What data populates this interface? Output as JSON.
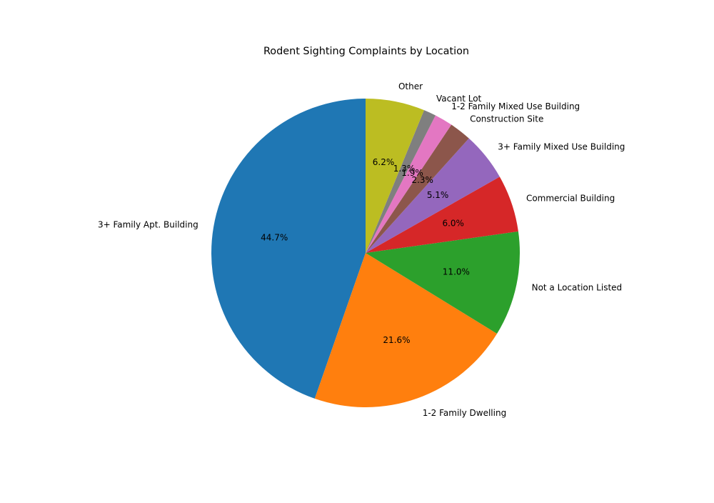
{
  "chart_data": {
    "type": "pie",
    "title": "Rodent Sighting Complaints by Location",
    "start_angle_deg": 90,
    "direction": "counterclockwise",
    "slices": [
      {
        "label": "3+ Family Apt. Building",
        "value": 44.7,
        "pct_label": "44.7%",
        "color": "#1f77b4"
      },
      {
        "label": "1-2 Family Dwelling",
        "value": 21.6,
        "pct_label": "21.6%",
        "color": "#ff7f0e"
      },
      {
        "label": "Not a Location Listed",
        "value": 11.0,
        "pct_label": "11.0%",
        "color": "#2ca02c"
      },
      {
        "label": "Commercial Building",
        "value": 6.0,
        "pct_label": "6.0%",
        "color": "#d62728"
      },
      {
        "label": "3+ Family Mixed Use Building",
        "value": 5.1,
        "pct_label": "5.1%",
        "color": "#9467bd"
      },
      {
        "label": "Construction Site",
        "value": 2.3,
        "pct_label": "2.3%",
        "color": "#8c564b"
      },
      {
        "label": "1-2 Family Mixed Use Building",
        "value": 1.9,
        "pct_label": "1.9%",
        "color": "#e377c2"
      },
      {
        "label": "Vacant Lot",
        "value": 1.3,
        "pct_label": "1.3%",
        "color": "#7f7f7f"
      },
      {
        "label": "Other",
        "value": 6.2,
        "pct_label": "6.2%",
        "color": "#bcbd22"
      }
    ]
  }
}
